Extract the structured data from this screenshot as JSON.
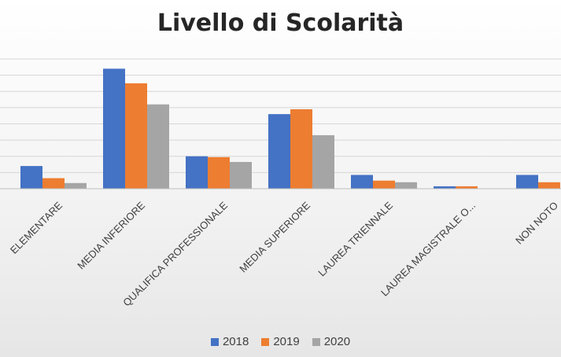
{
  "chart_data": {
    "type": "bar",
    "title": "Livello di Scolarità",
    "categories": [
      "ELEMENTARE",
      "MEDIA INFERIORE",
      "QUALIFICA PROFESSIONALE",
      "MEDIA SUPERIORE",
      "LAUREA TRIENNALE",
      "LAUREA MAGISTRALE O...",
      "NON NOTO"
    ],
    "series": [
      {
        "name": "2018",
        "color": "#4472C4",
        "values": [
          14,
          74,
          20,
          46,
          8.5,
          1.5,
          8.5
        ]
      },
      {
        "name": "2019",
        "color": "#ED7D31",
        "values": [
          6.5,
          65,
          19.5,
          49,
          5,
          1.5,
          4
        ]
      },
      {
        "name": "2020",
        "color": "#A5A5A5",
        "values": [
          3.5,
          52,
          16.5,
          33,
          4,
          0,
          0
        ]
      }
    ],
    "ylim": [
      0,
      80
    ],
    "grid": true,
    "legend_position": "bottom"
  }
}
